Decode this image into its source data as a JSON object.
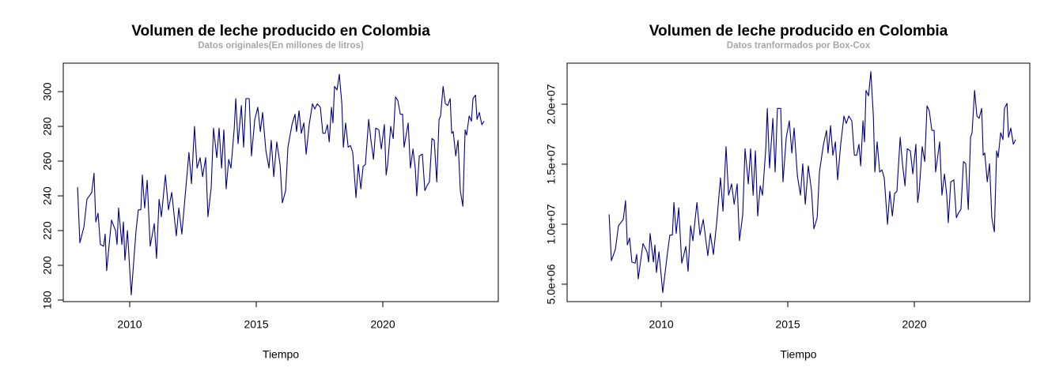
{
  "chart_data": [
    {
      "type": "line",
      "title": "Volumen de leche producido en Colombia",
      "subtitle": "Datos originales(En millones de litros)",
      "xlabel": "Tiempo",
      "color": "#00008b",
      "xlim": [
        2007.375,
        2024.56
      ],
      "xticks": [
        2010,
        2015,
        2020
      ],
      "ylim": [
        179.1,
        316.4
      ],
      "yticks": [
        180,
        200,
        220,
        240,
        260,
        280,
        300
      ],
      "x": [
        2007.94,
        2008.03,
        2008.19,
        2008.31,
        2008.5,
        2008.59,
        2008.66,
        2008.75,
        2008.84,
        2008.97,
        2009.03,
        2009.09,
        2009.28,
        2009.44,
        2009.5,
        2009.56,
        2009.69,
        2009.75,
        2009.81,
        2009.91,
        2010.06,
        2010.25,
        2010.34,
        2010.44,
        2010.5,
        2010.59,
        2010.69,
        2010.81,
        2010.97,
        2011.06,
        2011.16,
        2011.25,
        2011.41,
        2011.53,
        2011.66,
        2011.84,
        2011.94,
        2012.06,
        2012.19,
        2012.34,
        2012.44,
        2012.56,
        2012.66,
        2012.78,
        2012.88,
        2013,
        2013.09,
        2013.22,
        2013.31,
        2013.44,
        2013.53,
        2013.63,
        2013.72,
        2013.81,
        2013.91,
        2014,
        2014.13,
        2014.19,
        2014.28,
        2014.41,
        2014.5,
        2014.59,
        2014.72,
        2014.81,
        2014.94,
        2015.06,
        2015.16,
        2015.25,
        2015.38,
        2015.5,
        2015.59,
        2015.69,
        2015.81,
        2015.94,
        2016.03,
        2016.16,
        2016.25,
        2016.41,
        2016.53,
        2016.59,
        2016.69,
        2016.78,
        2016.88,
        2016.97,
        2017.09,
        2017.22,
        2017.31,
        2017.41,
        2017.53,
        2017.63,
        2017.72,
        2017.81,
        2017.88,
        2017.97,
        2018.03,
        2018.09,
        2018.19,
        2018.28,
        2018.38,
        2018.44,
        2018.53,
        2018.63,
        2018.72,
        2018.81,
        2018.94,
        2019.03,
        2019.13,
        2019.22,
        2019.31,
        2019.44,
        2019.53,
        2019.63,
        2019.72,
        2019.84,
        2019.94,
        2020.06,
        2020.13,
        2020.19,
        2020.31,
        2020.41,
        2020.5,
        2020.59,
        2020.69,
        2020.78,
        2020.84,
        2021,
        2021.09,
        2021.19,
        2021.28,
        2021.34,
        2021.44,
        2021.56,
        2021.66,
        2021.75,
        2021.84,
        2021.94,
        2022.03,
        2022.13,
        2022.22,
        2022.28,
        2022.38,
        2022.47,
        2022.56,
        2022.66,
        2022.72,
        2022.78,
        2022.88,
        2022.97,
        2023.06,
        2023.16,
        2023.25,
        2023.31,
        2023.41,
        2023.5,
        2023.56,
        2023.66,
        2023.72,
        2023.81,
        2023.91,
        2024
      ],
      "values": [
        245,
        213,
        222,
        238,
        242,
        253,
        225,
        230,
        212,
        211,
        218,
        197,
        226,
        220,
        212,
        233,
        212,
        225,
        203,
        220,
        183,
        220,
        232,
        232,
        252,
        233,
        249,
        211,
        224,
        204,
        238,
        228,
        252,
        232,
        242,
        217,
        233,
        218,
        240,
        265,
        247,
        280,
        256,
        262,
        251,
        262,
        228,
        245,
        279,
        262,
        279,
        256,
        278,
        244,
        261,
        256,
        279,
        296,
        270,
        292,
        268,
        296,
        296,
        263,
        284,
        291,
        277,
        288,
        266,
        256,
        272,
        251,
        271,
        258,
        236,
        243,
        268,
        281,
        287,
        277,
        289,
        276,
        282,
        264,
        281,
        293,
        290,
        293,
        291,
        276,
        276,
        281,
        271,
        291,
        282,
        303,
        301,
        310,
        293,
        268,
        282,
        268,
        269,
        265,
        239,
        258,
        244,
        257,
        258,
        284,
        272,
        261,
        279,
        278,
        267,
        281,
        252,
        258,
        280,
        273,
        297,
        295,
        287,
        287,
        268,
        282,
        256,
        267,
        256,
        240,
        263,
        264,
        243,
        246,
        248,
        273,
        272,
        248,
        284,
        286,
        303,
        293,
        292,
        296,
        276,
        277,
        263,
        272,
        243,
        234,
        278,
        275,
        286,
        283,
        296,
        298,
        284,
        288,
        281,
        283
      ]
    },
    {
      "type": "line",
      "title": "Volumen de leche producido en Colombia",
      "subtitle": "Datos tranformados por Box-Cox",
      "xlabel": "Tiempo",
      "color": "#00008b",
      "xlim": [
        2006.28,
        2024.56
      ],
      "xticks": [
        2010,
        2015,
        2020
      ],
      "ylim": [
        3550000,
        23420000
      ],
      "yticks": [
        {
          "value": 5000000,
          "label": "5.0e+06"
        },
        {
          "value": 10000000,
          "label": "1.0e+07"
        },
        {
          "value": 15000000,
          "label": "1.5e+07"
        },
        {
          "value": 20000000,
          "label": "2.0e+07"
        }
      ],
      "x": [
        2007.94,
        2008.03,
        2008.19,
        2008.31,
        2008.5,
        2008.59,
        2008.66,
        2008.75,
        2008.84,
        2008.97,
        2009.03,
        2009.09,
        2009.28,
        2009.44,
        2009.5,
        2009.56,
        2009.69,
        2009.75,
        2009.81,
        2009.91,
        2010.06,
        2010.25,
        2010.34,
        2010.44,
        2010.5,
        2010.59,
        2010.69,
        2010.81,
        2010.97,
        2011.06,
        2011.16,
        2011.25,
        2011.41,
        2011.53,
        2011.66,
        2011.84,
        2011.94,
        2012.06,
        2012.19,
        2012.34,
        2012.44,
        2012.56,
        2012.66,
        2012.78,
        2012.88,
        2013,
        2013.09,
        2013.22,
        2013.31,
        2013.44,
        2013.53,
        2013.63,
        2013.72,
        2013.81,
        2013.91,
        2014,
        2014.13,
        2014.19,
        2014.28,
        2014.41,
        2014.5,
        2014.59,
        2014.72,
        2014.81,
        2014.94,
        2015.06,
        2015.16,
        2015.25,
        2015.38,
        2015.5,
        2015.59,
        2015.69,
        2015.81,
        2015.94,
        2016.03,
        2016.16,
        2016.25,
        2016.41,
        2016.53,
        2016.59,
        2016.69,
        2016.78,
        2016.88,
        2016.97,
        2017.09,
        2017.22,
        2017.31,
        2017.41,
        2017.53,
        2017.63,
        2017.72,
        2017.81,
        2017.88,
        2017.97,
        2018.03,
        2018.09,
        2018.19,
        2018.28,
        2018.38,
        2018.44,
        2018.53,
        2018.63,
        2018.72,
        2018.81,
        2018.94,
        2019.03,
        2019.13,
        2019.22,
        2019.31,
        2019.44,
        2019.53,
        2019.63,
        2019.72,
        2019.84,
        2019.94,
        2020.06,
        2020.13,
        2020.19,
        2020.31,
        2020.41,
        2020.5,
        2020.59,
        2020.69,
        2020.78,
        2020.84,
        2021,
        2021.09,
        2021.19,
        2021.28,
        2021.34,
        2021.44,
        2021.56,
        2021.66,
        2021.75,
        2021.84,
        2021.94,
        2022.03,
        2022.13,
        2022.22,
        2022.28,
        2022.38,
        2022.47,
        2022.56,
        2022.66,
        2022.72,
        2022.78,
        2022.88,
        2022.97,
        2023.06,
        2023.16,
        2023.25,
        2023.31,
        2023.41,
        2023.5,
        2023.56,
        2023.66,
        2023.72,
        2023.81,
        2023.91,
        2024
      ],
      "values": [
        10820000,
        6960000,
        7920000,
        9870000,
        10400000,
        11970000,
        8270000,
        8850000,
        6850000,
        6750000,
        7480000,
        5440000,
        8390000,
        7690000,
        6850000,
        9230000,
        6850000,
        8270000,
        5980000,
        7690000,
        4300000,
        7690000,
        9100000,
        9100000,
        11810000,
        9230000,
        11370000,
        6750000,
        8150000,
        6070000,
        9870000,
        8620000,
        11810000,
        9100000,
        10400000,
        7380000,
        9230000,
        7480000,
        10120000,
        13860000,
        11090000,
        16470000,
        12420000,
        13360000,
        11660000,
        13360000,
        8620000,
        10820000,
        16290000,
        13360000,
        16290000,
        12420000,
        16110000,
        10680000,
        13200000,
        12420000,
        16290000,
        19650000,
        14680000,
        18820000,
        14350000,
        19650000,
        19650000,
        13530000,
        17240000,
        18610000,
        15930000,
        18010000,
        14020000,
        12420000,
        15040000,
        11660000,
        14860000,
        12730000,
        9610000,
        10540000,
        14350000,
        16660000,
        17820000,
        15930000,
        18210000,
        15750000,
        16860000,
        13690000,
        16660000,
        19020000,
        18400000,
        19020000,
        18610000,
        15750000,
        15750000,
        16660000,
        14860000,
        18610000,
        16860000,
        21150000,
        20700000,
        22720000,
        19020000,
        14350000,
        16860000,
        14350000,
        14520000,
        13860000,
        9990000,
        12730000,
        10680000,
        12570000,
        12730000,
        17240000,
        15040000,
        13200000,
        16290000,
        16110000,
        14190000,
        16660000,
        11810000,
        12730000,
        16470000,
        15220000,
        19860000,
        19440000,
        17820000,
        17820000,
        14350000,
        16860000,
        12420000,
        14190000,
        12420000,
        10120000,
        13530000,
        13690000,
        10540000,
        10960000,
        11230000,
        15220000,
        15040000,
        11230000,
        17240000,
        17630000,
        21150000,
        19020000,
        18820000,
        19650000,
        15750000,
        15930000,
        13530000,
        15040000,
        10540000,
        9360000,
        16110000,
        15570000,
        17630000,
        17050000,
        19650000,
        20070000,
        17240000,
        18010000,
        16660000,
        17050000
      ]
    }
  ]
}
